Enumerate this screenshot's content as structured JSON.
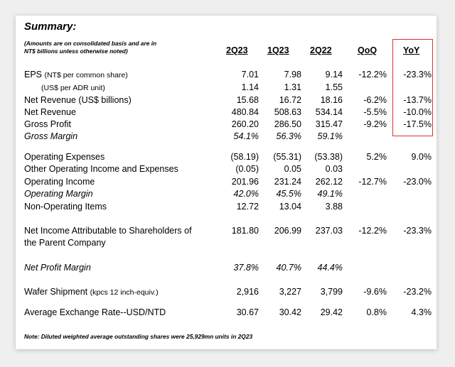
{
  "title": "Summary:",
  "subtitle_lines": [
    "(Amounts are on consolidated basis and are in",
    "NT$ billions unless otherwise noted)"
  ],
  "columns": [
    "2Q23",
    "1Q23",
    "2Q22",
    "QoQ",
    "YoY"
  ],
  "rows": [
    {
      "label": "EPS",
      "sub": "(NT$ per common share)",
      "indent": false,
      "italic": false,
      "values": [
        "7.01",
        "7.98",
        "9.14",
        "-12.2%",
        "-23.3%"
      ]
    },
    {
      "label": "",
      "sub": "(US$ per ADR unit)",
      "indent": true,
      "italic": false,
      "values": [
        "1.14",
        "1.31",
        "1.55",
        "",
        ""
      ]
    },
    {
      "label": "Net Revenue (US$ billions)",
      "sub": "",
      "indent": false,
      "italic": false,
      "values": [
        "15.68",
        "16.72",
        "18.16",
        "-6.2%",
        "-13.7%"
      ]
    },
    {
      "label": "Net Revenue",
      "sub": "",
      "indent": false,
      "italic": false,
      "values": [
        "480.84",
        "508.63",
        "534.14",
        "-5.5%",
        "-10.0%"
      ]
    },
    {
      "label": "Gross Profit",
      "sub": "",
      "indent": false,
      "italic": false,
      "values": [
        "260.20",
        "286.50",
        "315.47",
        "-9.2%",
        "-17.5%"
      ]
    },
    {
      "label": "Gross Margin",
      "sub": "",
      "indent": false,
      "italic": true,
      "values": [
        "54.1%",
        "56.3%",
        "59.1%",
        "",
        ""
      ]
    },
    {
      "label": "Operating Expenses",
      "sub": "",
      "indent": false,
      "italic": false,
      "values": [
        "(58.19)",
        "(55.31)",
        "(53.38)",
        "5.2%",
        "9.0%"
      ]
    },
    {
      "label": "Other Operating Income and Expenses",
      "sub": "",
      "indent": false,
      "italic": false,
      "values": [
        "(0.05)",
        "0.05",
        "0.03",
        "",
        ""
      ]
    },
    {
      "label": "Operating Income",
      "sub": "",
      "indent": false,
      "italic": false,
      "values": [
        "201.96",
        "231.24",
        "262.12",
        "-12.7%",
        "-23.0%"
      ]
    },
    {
      "label": "Operating Margin",
      "sub": "",
      "indent": false,
      "italic": true,
      "values": [
        "42.0%",
        "45.5%",
        "49.1%",
        "",
        ""
      ]
    },
    {
      "label": "Non-Operating Items",
      "sub": "",
      "indent": false,
      "italic": false,
      "values": [
        "12.72",
        "13.04",
        "3.88",
        "",
        ""
      ]
    },
    {
      "label": "Net Income Attributable to Shareholders of",
      "label2": "the Parent Company",
      "sub": "",
      "indent": false,
      "italic": false,
      "values": [
        "181.80",
        "206.99",
        "237.03",
        "-12.2%",
        "-23.3%"
      ]
    },
    {
      "label": "Net Profit Margin",
      "sub": "",
      "indent": false,
      "italic": true,
      "values": [
        "37.8%",
        "40.7%",
        "44.4%",
        "",
        ""
      ]
    },
    {
      "label": "Wafer Shipment",
      "sub": "(kpcs 12 inch-equiv.)",
      "indent": false,
      "italic": false,
      "values": [
        "2,916",
        "3,227",
        "3,799",
        "-9.6%",
        "-23.2%"
      ]
    },
    {
      "label": "Average Exchange Rate--USD/NTD",
      "sub": "",
      "indent": false,
      "italic": false,
      "values": [
        "30.67",
        "30.42",
        "29.42",
        "0.8%",
        "4.3%"
      ]
    }
  ],
  "footnote": "Note: Diluted weighted average outstanding shares were 25,929mn units in 2Q23",
  "highlight_color": "#d9342b"
}
